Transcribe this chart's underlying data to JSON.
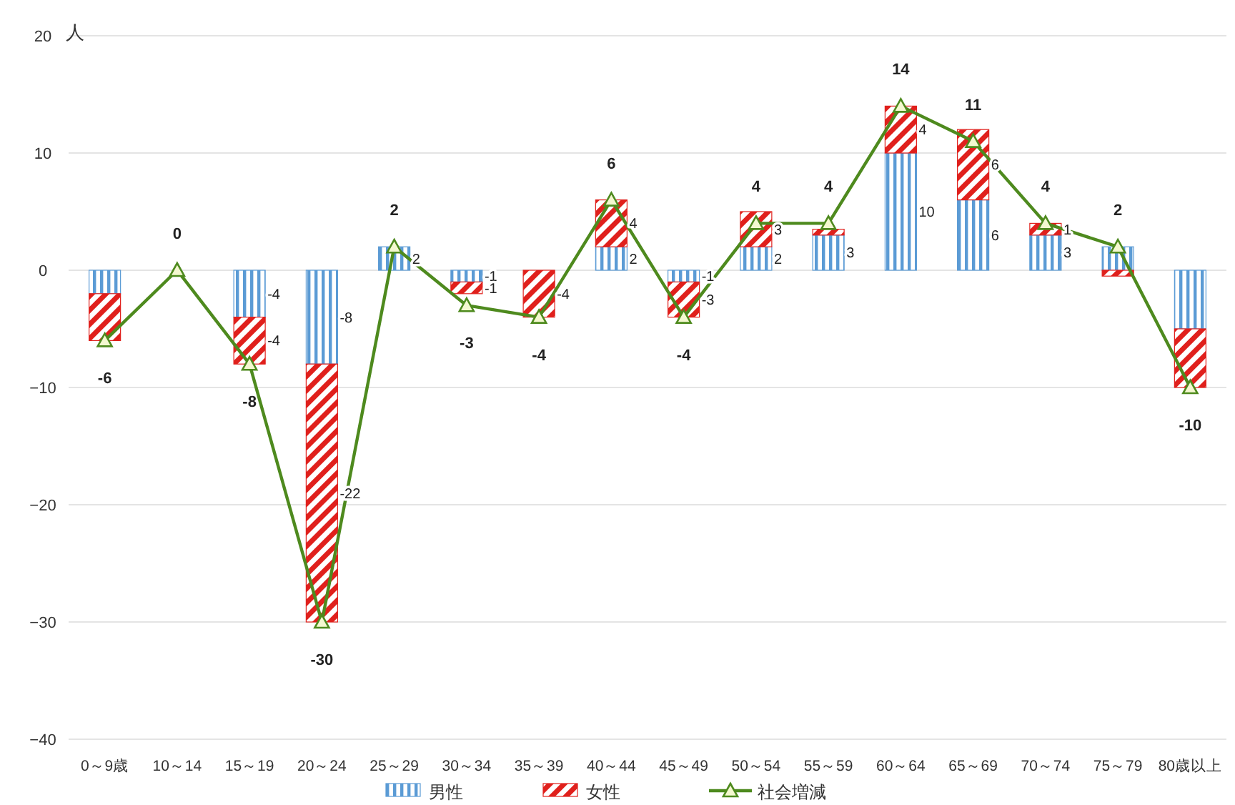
{
  "chart_data": {
    "type": "bar",
    "ylabel": "人",
    "stacked": true,
    "grid": "y",
    "legend": "bottom",
    "marker": "triangle",
    "categories": [
      "0～9歳",
      "10～14",
      "15～19",
      "20～24",
      "25～29",
      "30～34",
      "35～39",
      "40～44",
      "45～49",
      "50～54",
      "55～59",
      "60～64",
      "65～69",
      "70～74",
      "75～79",
      "80歳以上"
    ],
    "ylim": [
      -40,
      20
    ],
    "yticks": [
      -40,
      -30,
      -20,
      -10,
      0,
      10,
      20
    ],
    "series": [
      {
        "name": "男性",
        "color": "#5b9bd5",
        "values": [
          -2,
          0,
          -4,
          -8,
          2,
          -1,
          0,
          2,
          -1,
          2,
          3,
          10,
          6,
          3,
          2,
          -5
        ],
        "value_labels": [
          null,
          null,
          "-4",
          "-8",
          "2",
          "-1",
          null,
          "2",
          "-1",
          "2",
          "3",
          "10",
          "6",
          "3",
          null,
          null
        ]
      },
      {
        "name": "女性",
        "color": "#e0201c",
        "values": [
          -4,
          0,
          -4,
          -22,
          0,
          -1,
          -4,
          4,
          -3,
          3,
          0.5,
          4,
          6,
          1,
          -0.5,
          -5
        ],
        "value_labels": [
          null,
          null,
          "-4",
          "-22",
          null,
          "-1",
          "-4",
          "4",
          "-3",
          "3",
          null,
          "4",
          "6",
          "1",
          null,
          null
        ]
      },
      {
        "name": "社会増減",
        "type": "line",
        "color": "#4e8a1e",
        "values": [
          -6,
          0,
          -8,
          -30,
          2,
          -3,
          -4,
          6,
          -4,
          4,
          4,
          14,
          11,
          4,
          2,
          -10
        ],
        "value_labels": [
          "-6",
          "0",
          "-8",
          "-30",
          "2",
          "-3",
          "-4",
          "6",
          "-4",
          "4",
          "4",
          "14",
          "11",
          "4",
          "2",
          "-10"
        ]
      }
    ]
  }
}
